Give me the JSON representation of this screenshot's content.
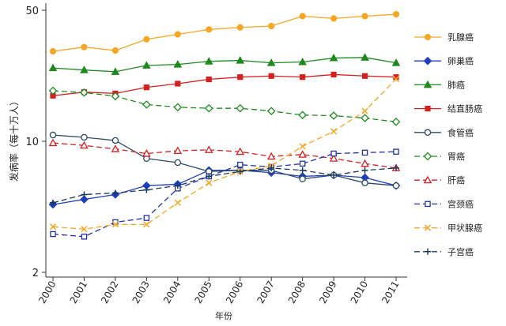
{
  "chart_data": {
    "type": "line",
    "title": "",
    "xlabel": "年份",
    "ylabel": "发病率（每十万人）",
    "yscale": "log",
    "ylim": [
      2,
      55
    ],
    "yticks": [
      2,
      10,
      50
    ],
    "ytick_labels": [
      "2",
      "10",
      "50"
    ],
    "categories": [
      "2000",
      "2001",
      "2002",
      "2003",
      "2004",
      "2005",
      "2006",
      "2007",
      "2008",
      "2009",
      "2010",
      "2011"
    ],
    "legend_position": "right",
    "series": [
      {
        "name": "乳腺癌",
        "color": "#f5a623",
        "dash": "solid",
        "marker": "circle-filled",
        "values": [
          30.2,
          31.8,
          30.5,
          35.0,
          37.2,
          39.5,
          40.5,
          41.2,
          46.5,
          45.2,
          46.5,
          47.6
        ]
      },
      {
        "name": "卵巢癌",
        "color": "#1f3fbf",
        "dash": "solid",
        "marker": "diamond-filled",
        "values": [
          4.6,
          4.9,
          5.2,
          5.8,
          5.9,
          7.0,
          7.0,
          6.8,
          6.5,
          6.6,
          6.4,
          5.8
        ]
      },
      {
        "name": "肺癌",
        "color": "#1e8a1e",
        "dash": "solid",
        "marker": "triangle-filled",
        "values": [
          24.6,
          24.0,
          23.5,
          25.4,
          25.7,
          26.7,
          27.0,
          26.2,
          26.5,
          27.8,
          28.0,
          26.2
        ]
      },
      {
        "name": "结直肠癌",
        "color": "#d62020",
        "dash": "solid",
        "marker": "square-filled",
        "values": [
          17.5,
          18.3,
          18.0,
          19.4,
          20.3,
          21.4,
          22.0,
          22.3,
          22.0,
          22.7,
          22.3,
          22.0
        ]
      },
      {
        "name": "食管癌",
        "color": "#2c4a66",
        "dash": "solid",
        "marker": "circle-open",
        "values": [
          10.8,
          10.5,
          10.1,
          8.1,
          7.7,
          6.9,
          7.0,
          7.0,
          6.3,
          6.6,
          6.0,
          5.8
        ]
      },
      {
        "name": "胃癌",
        "color": "#1e8a1e",
        "dash": "dash",
        "marker": "diamond-open",
        "values": [
          18.6,
          18.2,
          17.4,
          15.7,
          15.2,
          15.0,
          15.0,
          14.5,
          13.8,
          13.7,
          13.3,
          12.7
        ]
      },
      {
        "name": "肝癌",
        "color": "#d62020",
        "dash": "dash",
        "marker": "triangle-open",
        "values": [
          9.8,
          9.5,
          9.1,
          8.6,
          8.9,
          9.0,
          8.8,
          8.3,
          8.5,
          8.1,
          7.6,
          7.2
        ]
      },
      {
        "name": "宫颈癌",
        "color": "#2233aa",
        "dash": "dash",
        "marker": "square-open",
        "values": [
          3.2,
          3.1,
          3.7,
          3.9,
          5.6,
          6.5,
          7.5,
          7.3,
          7.6,
          8.6,
          8.7,
          8.8
        ]
      },
      {
        "name": "甲状腺癌",
        "color": "#f5a623",
        "dash": "dash",
        "marker": "x",
        "values": [
          3.5,
          3.4,
          3.6,
          3.6,
          4.7,
          6.0,
          6.9,
          7.4,
          9.4,
          11.3,
          14.5,
          21.5
        ]
      },
      {
        "name": "子宫癌",
        "color": "#1a3a5a",
        "dash": "dash",
        "marker": "plus",
        "values": [
          4.7,
          5.2,
          5.3,
          5.5,
          5.8,
          6.5,
          6.9,
          7.2,
          7.0,
          6.6,
          7.0,
          7.2
        ]
      }
    ]
  }
}
